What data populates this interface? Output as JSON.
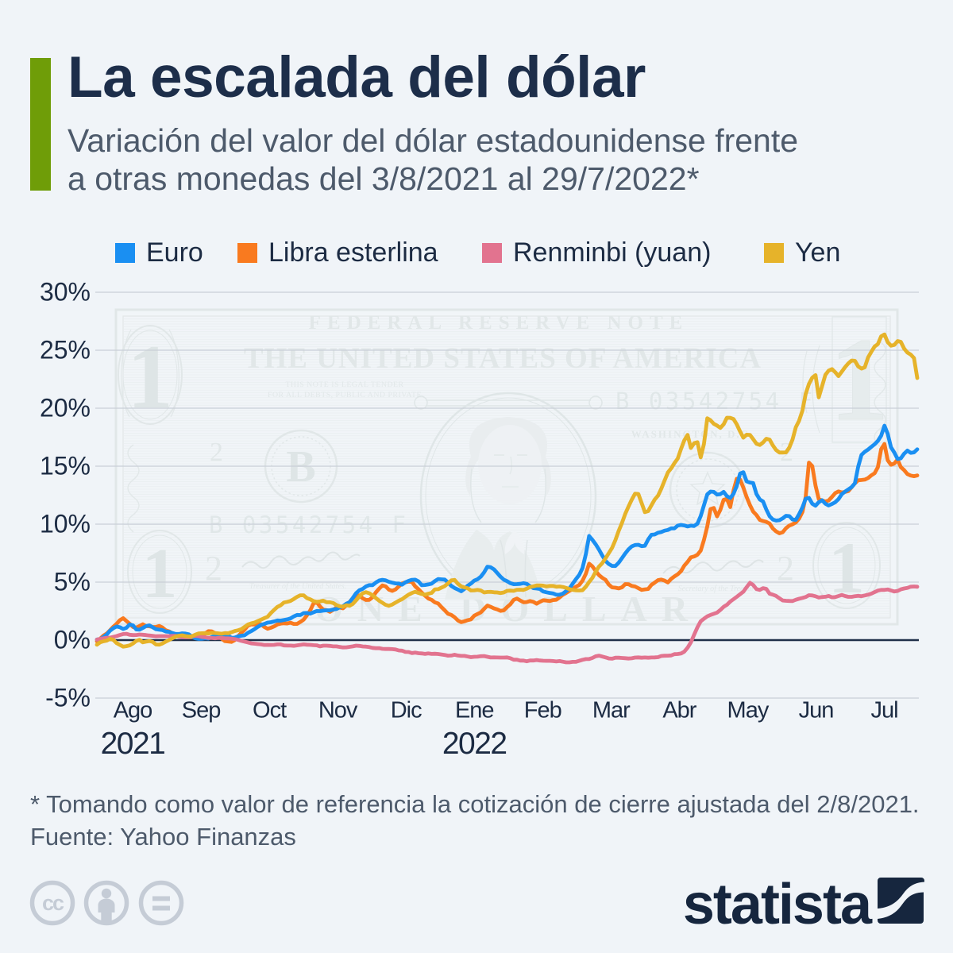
{
  "colors": {
    "background": "#f0f4f8",
    "accent_green": "#6f9d08",
    "heading_navy": "#1d2e4a",
    "subtitle_gray": "#4d5a6b",
    "axis_navy": "#1c2b43",
    "gridline_gray": "#c9cfd7",
    "zero_line_navy": "#20304a",
    "cc_icon_gray": "#c5ccd6"
  },
  "header": {
    "title": "La escalada del dólar",
    "subtitle_line1": "Variación del valor del dólar estadounidense frente",
    "subtitle_line2": "a otras monedas del 3/8/2021 al 29/7/2022*"
  },
  "legend": {
    "position": "top",
    "items": [
      {
        "label": "Euro",
        "color": "#1a8ff2"
      },
      {
        "label": "Libra esterlina",
        "color": "#f97a1f"
      },
      {
        "label": "Renminbi (yuan)",
        "color": "#e2738f"
      },
      {
        "label": "Yen",
        "color": "#e6b32a"
      }
    ]
  },
  "chart_data": {
    "type": "line",
    "title": "La escalada del dólar",
    "subtitle": "Variación del valor del dólar estadounidense frente a otras monedas del 3/8/2021 al 29/7/2022*",
    "date_range": {
      "from": "3/8/2021",
      "to": "29/7/2022"
    },
    "ylabel": "",
    "xlabel": "",
    "ylim": [
      -5,
      30
    ],
    "grid": true,
    "y_ticks": [
      {
        "label": "30%",
        "value": 30
      },
      {
        "label": "25%",
        "value": 25
      },
      {
        "label": "20%",
        "value": 20
      },
      {
        "label": "15%",
        "value": 15
      },
      {
        "label": "10%",
        "value": 10
      },
      {
        "label": "5%",
        "value": 5
      },
      {
        "label": "0%",
        "value": 0
      },
      {
        "label": "-5%",
        "value": -5
      }
    ],
    "x_month_labels": [
      "Ago",
      "Sep",
      "Oct",
      "Nov",
      "Dic",
      "Ene",
      "Feb",
      "Mar",
      "Abr",
      "May",
      "Jun",
      "Jul"
    ],
    "x_year_labels": [
      {
        "label": "2021",
        "month_index": 0
      },
      {
        "label": "2022",
        "month_index": 5
      }
    ],
    "unit": "%",
    "series": [
      {
        "name": "Euro",
        "color": "#1a8ff2",
        "draw_order": 2,
        "values": [
          0.05,
          0.08,
          0.26,
          0.48,
          0.81,
          1.03,
          1.17,
          1.11,
          0.96,
          1.06,
          1.35,
          1.27,
          0.92,
          0.9,
          1.04,
          1.21,
          1.27,
          1.11,
          0.94,
          0.9,
          0.86,
          0.74,
          0.71,
          0.61,
          0.53,
          0.53,
          0.58,
          0.56,
          0.5,
          0.3,
          0.15,
          0.1,
          0.11,
          0.16,
          0.13,
          0.26,
          0.35,
          0.35,
          0.33,
          0.43,
          0.4,
          0.2,
          0.21,
          0.32,
          0.38,
          0.41,
          0.62,
          0.77,
          0.94,
          1.14,
          1.31,
          1.39,
          1.51,
          1.54,
          1.61,
          1.69,
          1.68,
          1.73,
          1.79,
          1.87,
          2.04,
          2.17,
          2.16,
          2.33,
          2.34,
          2.28,
          2.4,
          2.51,
          2.5,
          2.54,
          2.57,
          2.57,
          2.64,
          2.68,
          2.83,
          2.92,
          3.14,
          3.27,
          3.64,
          4.05,
          4.3,
          4.42,
          4.63,
          4.74,
          4.74,
          4.96,
          5.14,
          5.2,
          5.15,
          5.03,
          4.95,
          4.89,
          4.88,
          4.78,
          4.98,
          5.11,
          5.2,
          5.21,
          5.07,
          4.73,
          4.75,
          4.8,
          4.87,
          5.09,
          5.27,
          5.24,
          5.22,
          4.98,
          4.67,
          4.49,
          4.36,
          4.21,
          4.41,
          4.69,
          4.88,
          5.13,
          5.25,
          5.47,
          5.84,
          6.33,
          6.28,
          6.1,
          5.79,
          5.47,
          5.21,
          5.08,
          4.91,
          4.82,
          4.83,
          4.85,
          4.91,
          4.85,
          4.65,
          4.48,
          4.45,
          4.41,
          4.19,
          4.12,
          4.07,
          4.03,
          3.91,
          3.92,
          4.01,
          4.23,
          4.45,
          4.86,
          5.27,
          5.62,
          6.21,
          7.42,
          8.98,
          8.65,
          8.26,
          7.81,
          7.3,
          6.83,
          6.56,
          6.4,
          6.39,
          6.67,
          7.06,
          7.47,
          7.82,
          8.08,
          8.2,
          8.22,
          8.1,
          8.14,
          8.68,
          9.08,
          9.11,
          9.26,
          9.32,
          9.44,
          9.5,
          9.64,
          9.64,
          9.88,
          9.93,
          9.89,
          9.8,
          9.87,
          9.84,
          10.04,
          10.7,
          11.63,
          12.57,
          12.81,
          12.78,
          12.55,
          12.59,
          12.78,
          12.42,
          12.25,
          12.61,
          13.3,
          14.36,
          14.48,
          13.69,
          13.59,
          13.54,
          12.6,
          12.13,
          11.96,
          11.27,
          10.68,
          10.4,
          10.31,
          10.34,
          10.5,
          10.72,
          10.69,
          10.4,
          10.37,
          10.86,
          11.44,
          12.2,
          12.27,
          11.76,
          11.59,
          11.9,
          12.06,
          11.76,
          11.61,
          11.74,
          11.89,
          12.16,
          12.59,
          12.81,
          12.99,
          13.2,
          13.53,
          14.95,
          15.98,
          16.24,
          16.43,
          16.67,
          16.89,
          17.18,
          17.62,
          18.49,
          17.79,
          16.63,
          16.18,
          15.62,
          15.68,
          16.08,
          16.34,
          16.15,
          16.19,
          16.45
        ]
      },
      {
        "name": "Libra esterlina",
        "color": "#f97a1f",
        "draw_order": 1,
        "values": [
          -0.1,
          0.12,
          0.39,
          0.56,
          0.84,
          1.15,
          1.4,
          1.72,
          1.89,
          1.65,
          1.41,
          1.13,
          1.07,
          1.22,
          1.36,
          1.2,
          1.19,
          1.13,
          1.14,
          1.22,
          1.08,
          0.84,
          0.75,
          0.59,
          0.45,
          0.34,
          0.3,
          0.29,
          0.27,
          0.25,
          0.18,
          0.21,
          0.2,
          0.58,
          0.77,
          0.75,
          0.6,
          0.43,
          0.14,
          -0.09,
          -0.12,
          -0.16,
          -0.01,
          0.33,
          0.62,
          0.89,
          1.24,
          1.35,
          1.34,
          1.39,
          1.38,
          1.14,
          0.98,
          1.06,
          1.18,
          1.35,
          1.42,
          1.45,
          1.43,
          1.5,
          1.4,
          1.4,
          1.57,
          1.76,
          2.13,
          2.56,
          3.15,
          3.29,
          2.89,
          2.63,
          2.58,
          2.44,
          2.61,
          2.81,
          2.81,
          2.74,
          2.99,
          3.29,
          3.62,
          3.85,
          3.85,
          3.6,
          3.46,
          3.47,
          3.7,
          4.11,
          4.44,
          4.71,
          4.64,
          4.35,
          4.25,
          4.37,
          4.63,
          4.88,
          4.98,
          5.05,
          5.02,
          4.64,
          4.39,
          4.09,
          3.83,
          3.59,
          3.47,
          3.25,
          3.16,
          2.84,
          2.57,
          2.27,
          2.17,
          1.97,
          1.7,
          1.55,
          1.62,
          1.72,
          1.79,
          2.1,
          2.25,
          2.39,
          2.69,
          2.98,
          2.87,
          2.73,
          2.65,
          2.52,
          2.57,
          2.85,
          3.09,
          3.47,
          3.58,
          3.42,
          3.27,
          3.28,
          3.37,
          3.3,
          3.14,
          3.3,
          3.44,
          3.41,
          3.37,
          3.45,
          3.48,
          3.68,
          3.91,
          4.07,
          4.25,
          4.39,
          4.61,
          4.76,
          5.12,
          5.72,
          6.59,
          6.36,
          5.96,
          5.61,
          5.38,
          5.2,
          4.79,
          4.55,
          4.52,
          4.46,
          4.55,
          4.83,
          4.82,
          4.67,
          4.62,
          4.48,
          4.33,
          4.38,
          4.41,
          4.77,
          4.96,
          5.17,
          5.22,
          5.13,
          4.97,
          5.28,
          5.49,
          5.68,
          5.94,
          6.42,
          6.75,
          7.14,
          7.21,
          7.36,
          7.71,
          8.64,
          9.81,
          11.3,
          11.4,
          10.67,
          11.24,
          12.1,
          12.18,
          11.47,
          12.9,
          13.91,
          13.85,
          13.15,
          12.35,
          11.65,
          11.08,
          10.79,
          10.37,
          10.27,
          10.2,
          10.05,
          9.62,
          9.37,
          9.21,
          9.31,
          9.65,
          9.88,
          9.99,
          10.15,
          10.47,
          11.05,
          12.35,
          15.31,
          15.01,
          13.32,
          12.16,
          12.05,
          11.95,
          12.04,
          12.35,
          12.68,
          12.82,
          12.73,
          12.78,
          12.85,
          13.19,
          13.52,
          13.78,
          13.81,
          13.84,
          13.97,
          14.21,
          14.39,
          14.91,
          16.46,
          16.92,
          15.51,
          15.12,
          15.23,
          15.57,
          14.92,
          14.66,
          14.32,
          14.19,
          14.14,
          14.2
        ]
      },
      {
        "name": "Renminbi (yuan)",
        "color": "#e2738f",
        "draw_order": 3,
        "values": [
          0.05,
          0.1,
          0.15,
          0.2,
          0.21,
          0.28,
          0.35,
          0.44,
          0.52,
          0.54,
          0.46,
          0.43,
          0.44,
          0.48,
          0.46,
          0.43,
          0.4,
          0.37,
          0.33,
          0.34,
          0.34,
          0.34,
          0.34,
          0.37,
          0.36,
          0.28,
          0.26,
          0.24,
          0.25,
          0.32,
          0.37,
          0.34,
          0.27,
          0.24,
          0.19,
          0.18,
          0.16,
          0.19,
          0.18,
          0.16,
          0.15,
          0.13,
          0.09,
          0.02,
          -0.06,
          -0.13,
          -0.2,
          -0.28,
          -0.31,
          -0.34,
          -0.37,
          -0.42,
          -0.41,
          -0.42,
          -0.41,
          -0.37,
          -0.37,
          -0.46,
          -0.47,
          -0.47,
          -0.49,
          -0.45,
          -0.41,
          -0.37,
          -0.4,
          -0.41,
          -0.44,
          -0.45,
          -0.54,
          -0.48,
          -0.48,
          -0.5,
          -0.54,
          -0.54,
          -0.59,
          -0.63,
          -0.62,
          -0.58,
          -0.54,
          -0.48,
          -0.5,
          -0.55,
          -0.56,
          -0.6,
          -0.67,
          -0.7,
          -0.69,
          -0.75,
          -0.77,
          -0.77,
          -0.78,
          -0.81,
          -0.89,
          -0.91,
          -1.02,
          -1.03,
          -1.12,
          -1.08,
          -1.13,
          -1.15,
          -1.19,
          -1.15,
          -1.19,
          -1.18,
          -1.2,
          -1.24,
          -1.28,
          -1.34,
          -1.33,
          -1.26,
          -1.33,
          -1.36,
          -1.36,
          -1.42,
          -1.47,
          -1.44,
          -1.43,
          -1.39,
          -1.38,
          -1.44,
          -1.5,
          -1.49,
          -1.5,
          -1.51,
          -1.51,
          -1.49,
          -1.56,
          -1.69,
          -1.69,
          -1.77,
          -1.77,
          -1.83,
          -1.76,
          -1.76,
          -1.72,
          -1.76,
          -1.78,
          -1.79,
          -1.79,
          -1.81,
          -1.84,
          -1.81,
          -1.86,
          -1.92,
          -1.92,
          -1.88,
          -1.87,
          -1.79,
          -1.7,
          -1.64,
          -1.63,
          -1.54,
          -1.4,
          -1.34,
          -1.42,
          -1.49,
          -1.58,
          -1.6,
          -1.52,
          -1.52,
          -1.54,
          -1.56,
          -1.59,
          -1.57,
          -1.51,
          -1.49,
          -1.52,
          -1.5,
          -1.52,
          -1.5,
          -1.49,
          -1.47,
          -1.37,
          -1.35,
          -1.34,
          -1.32,
          -1.21,
          -1.2,
          -1.16,
          -1.0,
          -0.66,
          -0.2,
          0.46,
          1.1,
          1.62,
          1.84,
          2.05,
          2.17,
          2.27,
          2.37,
          2.6,
          2.87,
          3.04,
          3.32,
          3.53,
          3.73,
          3.96,
          4.17,
          4.56,
          4.94,
          4.75,
          4.4,
          4.33,
          4.48,
          4.42,
          4.0,
          3.92,
          3.81,
          3.6,
          3.42,
          3.39,
          3.38,
          3.37,
          3.48,
          3.57,
          3.64,
          3.72,
          3.87,
          3.85,
          3.78,
          3.67,
          3.71,
          3.74,
          3.81,
          3.69,
          3.71,
          3.8,
          3.89,
          3.8,
          3.73,
          3.73,
          3.79,
          3.82,
          3.79,
          3.85,
          3.92,
          4.01,
          4.14,
          4.27,
          4.33,
          4.33,
          4.37,
          4.28,
          4.19,
          4.24,
          4.38,
          4.45,
          4.5,
          4.6,
          4.62,
          4.6
        ]
      },
      {
        "name": "Yen",
        "color": "#e6b32a",
        "draw_order": 4,
        "values": [
          -0.4,
          -0.19,
          -0.1,
          -0.05,
          0.11,
          0.02,
          -0.26,
          -0.41,
          -0.56,
          -0.52,
          -0.46,
          -0.29,
          -0.07,
          0.02,
          -0.19,
          -0.13,
          -0.08,
          -0.15,
          -0.38,
          -0.39,
          -0.29,
          -0.13,
          0.01,
          0.15,
          0.3,
          0.38,
          0.41,
          0.34,
          0.31,
          0.33,
          0.47,
          0.57,
          0.59,
          0.6,
          0.57,
          0.63,
          0.61,
          0.58,
          0.55,
          0.6,
          0.59,
          0.68,
          0.78,
          0.84,
          0.94,
          1.14,
          1.34,
          1.44,
          1.51,
          1.64,
          1.76,
          1.89,
          2.01,
          2.33,
          2.6,
          2.86,
          3.0,
          3.24,
          3.3,
          3.38,
          3.54,
          3.73,
          3.86,
          3.86,
          3.62,
          3.52,
          3.36,
          3.31,
          3.34,
          3.4,
          3.27,
          3.27,
          3.2,
          3.03,
          2.91,
          2.89,
          3.01,
          2.96,
          3.12,
          3.43,
          3.77,
          4.04,
          4.13,
          4.04,
          3.87,
          3.63,
          3.4,
          3.22,
          3.04,
          2.96,
          3.07,
          3.23,
          3.4,
          3.53,
          3.73,
          3.92,
          4.06,
          4.17,
          4.07,
          3.98,
          3.92,
          4.0,
          4.07,
          4.38,
          4.39,
          4.53,
          4.66,
          4.89,
          5.15,
          5.19,
          4.86,
          4.64,
          4.54,
          4.47,
          4.28,
          4.29,
          4.33,
          4.28,
          4.11,
          4.15,
          4.16,
          4.12,
          4.11,
          4.06,
          4.11,
          4.25,
          4.27,
          4.25,
          4.34,
          4.35,
          4.33,
          4.43,
          4.58,
          4.64,
          4.71,
          4.71,
          4.7,
          4.63,
          4.67,
          4.67,
          4.6,
          4.62,
          4.58,
          4.5,
          4.4,
          4.33,
          4.29,
          4.28,
          4.3,
          4.61,
          5.01,
          5.36,
          5.9,
          6.34,
          6.63,
          7.06,
          7.5,
          7.95,
          8.62,
          9.41,
          10.09,
          10.89,
          11.52,
          12.11,
          12.62,
          12.6,
          11.83,
          11.04,
          11.12,
          11.63,
          12.12,
          12.46,
          13.06,
          13.76,
          14.46,
          14.81,
          15.26,
          15.66,
          16.48,
          17.22,
          17.7,
          16.57,
          16.98,
          17.07,
          15.76,
          16.92,
          19.13,
          18.96,
          18.66,
          18.5,
          18.3,
          18.61,
          19.18,
          19.17,
          19.07,
          18.61,
          17.99,
          17.46,
          17.71,
          17.7,
          17.33,
          16.94,
          16.83,
          17.04,
          17.36,
          17.29,
          16.79,
          16.39,
          16.18,
          16.18,
          16.19,
          16.61,
          17.31,
          18.36,
          18.92,
          19.79,
          21.23,
          22.09,
          22.64,
          22.85,
          20.94,
          21.91,
          22.88,
          23.24,
          23.37,
          23.1,
          22.77,
          23.16,
          23.54,
          23.86,
          24.11,
          24.08,
          23.6,
          23.42,
          23.53,
          24.37,
          24.87,
          25.32,
          25.53,
          26.19,
          26.36,
          25.69,
          25.39,
          25.46,
          25.79,
          25.72,
          25.14,
          24.8,
          24.63,
          24.32,
          22.6
        ]
      }
    ]
  },
  "watermark": {
    "banner": "FEDERAL RESERVE NOTE",
    "country": "THE UNITED STATES OF AMERICA",
    "legal_line1": "THIS NOTE IS LEGAL TENDER",
    "legal_line2": "FOR ALL DEBTS, PUBLIC AND PRIVATE",
    "serial_number": "B 03542754 F",
    "city": "WASHINGTON, D.C.",
    "denomination": "ONE DOLLAR",
    "seal_letter": "B",
    "numeral_one": "1",
    "numeral_two": "2",
    "treasurer_caption": "Treasurer of the United States.",
    "secretary_caption": "Secretary of the Treasury."
  },
  "footer": {
    "footnote": "* Tomando como valor de referencia la cotización de cierre ajustada del 2/8/2021.",
    "source": "Fuente: Yahoo Finanzas",
    "license_icons": [
      "cc-icon",
      "attribution-person-icon",
      "no-derivatives-equals-icon"
    ],
    "brand_name": "statista"
  }
}
